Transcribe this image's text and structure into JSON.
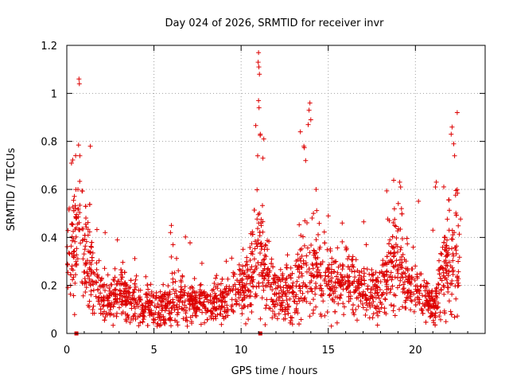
{
  "chart_data": {
    "type": "scatter",
    "title": "Day 024 of 2026, SRMTID for receiver invr",
    "xlabel": "GPS time / hours",
    "ylabel": "SRMTID / TECUs",
    "xlim": [
      0,
      24
    ],
    "ylim": [
      0,
      1.2
    ],
    "xticks": [
      0,
      5,
      10,
      15,
      20
    ],
    "xtick_labels": [
      "0",
      "5",
      "10",
      "15",
      "20"
    ],
    "yticks": [
      0,
      0.2,
      0.4,
      0.6,
      0.8,
      1,
      1.2
    ],
    "ytick_labels": [
      "0",
      "0.2",
      "0.4",
      "0.6",
      "0.8",
      "1",
      "1.2"
    ],
    "grid": true,
    "marker": "+",
    "colors": {
      "series": "#dd0000",
      "grid": "#a0a0a0",
      "axis": "#000000"
    },
    "gap_markers_x": [
      0.55,
      11.1
    ],
    "series": [
      {
        "name": "SRMTID",
        "envelope": {
          "x": [
            0.0,
            0.3,
            0.5,
            0.8,
            1.0,
            1.3,
            1.6,
            2.0,
            2.5,
            3.0,
            3.5,
            4.0,
            5.0,
            5.5,
            6.0,
            6.3,
            7.0,
            8.0,
            9.0,
            9.5,
            10.0,
            10.5,
            10.8,
            11.0,
            11.2,
            11.5,
            12.0,
            12.5,
            13.0,
            13.4,
            13.7,
            14.0,
            14.3,
            15.0,
            15.5,
            16.0,
            16.5,
            17.0,
            17.5,
            18.0,
            18.5,
            19.0,
            19.3,
            19.6,
            20.0,
            20.5,
            21.0,
            21.3,
            21.6,
            22.0,
            22.3,
            22.6
          ],
          "center": [
            0.3,
            0.45,
            0.42,
            0.4,
            0.32,
            0.28,
            0.2,
            0.15,
            0.14,
            0.18,
            0.14,
            0.12,
            0.11,
            0.1,
            0.14,
            0.16,
            0.12,
            0.12,
            0.14,
            0.16,
            0.18,
            0.22,
            0.3,
            0.38,
            0.3,
            0.24,
            0.18,
            0.17,
            0.16,
            0.24,
            0.3,
            0.28,
            0.25,
            0.22,
            0.2,
            0.23,
            0.2,
            0.18,
            0.17,
            0.2,
            0.24,
            0.3,
            0.26,
            0.2,
            0.19,
            0.15,
            0.12,
            0.14,
            0.25,
            0.32,
            0.35,
            0.3
          ],
          "spread": [
            0.12,
            0.15,
            0.14,
            0.13,
            0.12,
            0.1,
            0.07,
            0.05,
            0.05,
            0.07,
            0.05,
            0.05,
            0.05,
            0.04,
            0.07,
            0.07,
            0.05,
            0.04,
            0.05,
            0.05,
            0.06,
            0.08,
            0.12,
            0.18,
            0.12,
            0.08,
            0.06,
            0.06,
            0.06,
            0.1,
            0.12,
            0.11,
            0.09,
            0.08,
            0.07,
            0.08,
            0.07,
            0.06,
            0.06,
            0.07,
            0.09,
            0.11,
            0.1,
            0.07,
            0.06,
            0.05,
            0.04,
            0.05,
            0.12,
            0.15,
            0.16,
            0.12
          ]
        },
        "n_points": 2200,
        "outliers": [
          {
            "x": 0.7,
            "y": 1.06
          },
          {
            "x": 0.72,
            "y": 1.04
          },
          {
            "x": 0.75,
            "y": 0.74
          },
          {
            "x": 1.35,
            "y": 0.78
          },
          {
            "x": 6.0,
            "y": 0.45
          },
          {
            "x": 5.95,
            "y": 0.42
          },
          {
            "x": 11.0,
            "y": 1.17
          },
          {
            "x": 10.98,
            "y": 1.13
          },
          {
            "x": 11.02,
            "y": 1.11
          },
          {
            "x": 11.05,
            "y": 1.08
          },
          {
            "x": 11.0,
            "y": 0.97
          },
          {
            "x": 11.03,
            "y": 0.94
          },
          {
            "x": 11.1,
            "y": 0.83
          },
          {
            "x": 11.3,
            "y": 0.81
          },
          {
            "x": 11.25,
            "y": 0.73
          },
          {
            "x": 10.95,
            "y": 0.74
          },
          {
            "x": 13.95,
            "y": 0.96
          },
          {
            "x": 13.9,
            "y": 0.93
          },
          {
            "x": 13.85,
            "y": 0.87
          },
          {
            "x": 14.0,
            "y": 0.89
          },
          {
            "x": 13.4,
            "y": 0.84
          },
          {
            "x": 13.6,
            "y": 0.78
          },
          {
            "x": 13.7,
            "y": 0.72
          },
          {
            "x": 14.3,
            "y": 0.6
          },
          {
            "x": 19.1,
            "y": 0.63
          },
          {
            "x": 19.15,
            "y": 0.61
          },
          {
            "x": 19.2,
            "y": 0.52
          },
          {
            "x": 22.4,
            "y": 0.92
          },
          {
            "x": 22.1,
            "y": 0.86
          },
          {
            "x": 22.05,
            "y": 0.83
          },
          {
            "x": 22.2,
            "y": 0.79
          },
          {
            "x": 22.25,
            "y": 0.74
          },
          {
            "x": 21.2,
            "y": 0.63
          },
          {
            "x": 21.15,
            "y": 0.61
          },
          {
            "x": 2.2,
            "y": 0.42
          },
          {
            "x": 2.9,
            "y": 0.39
          },
          {
            "x": 15.0,
            "y": 0.49
          },
          {
            "x": 15.8,
            "y": 0.46
          },
          {
            "x": 18.5,
            "y": 0.47
          },
          {
            "x": 21.0,
            "y": 0.43
          }
        ]
      }
    ]
  }
}
